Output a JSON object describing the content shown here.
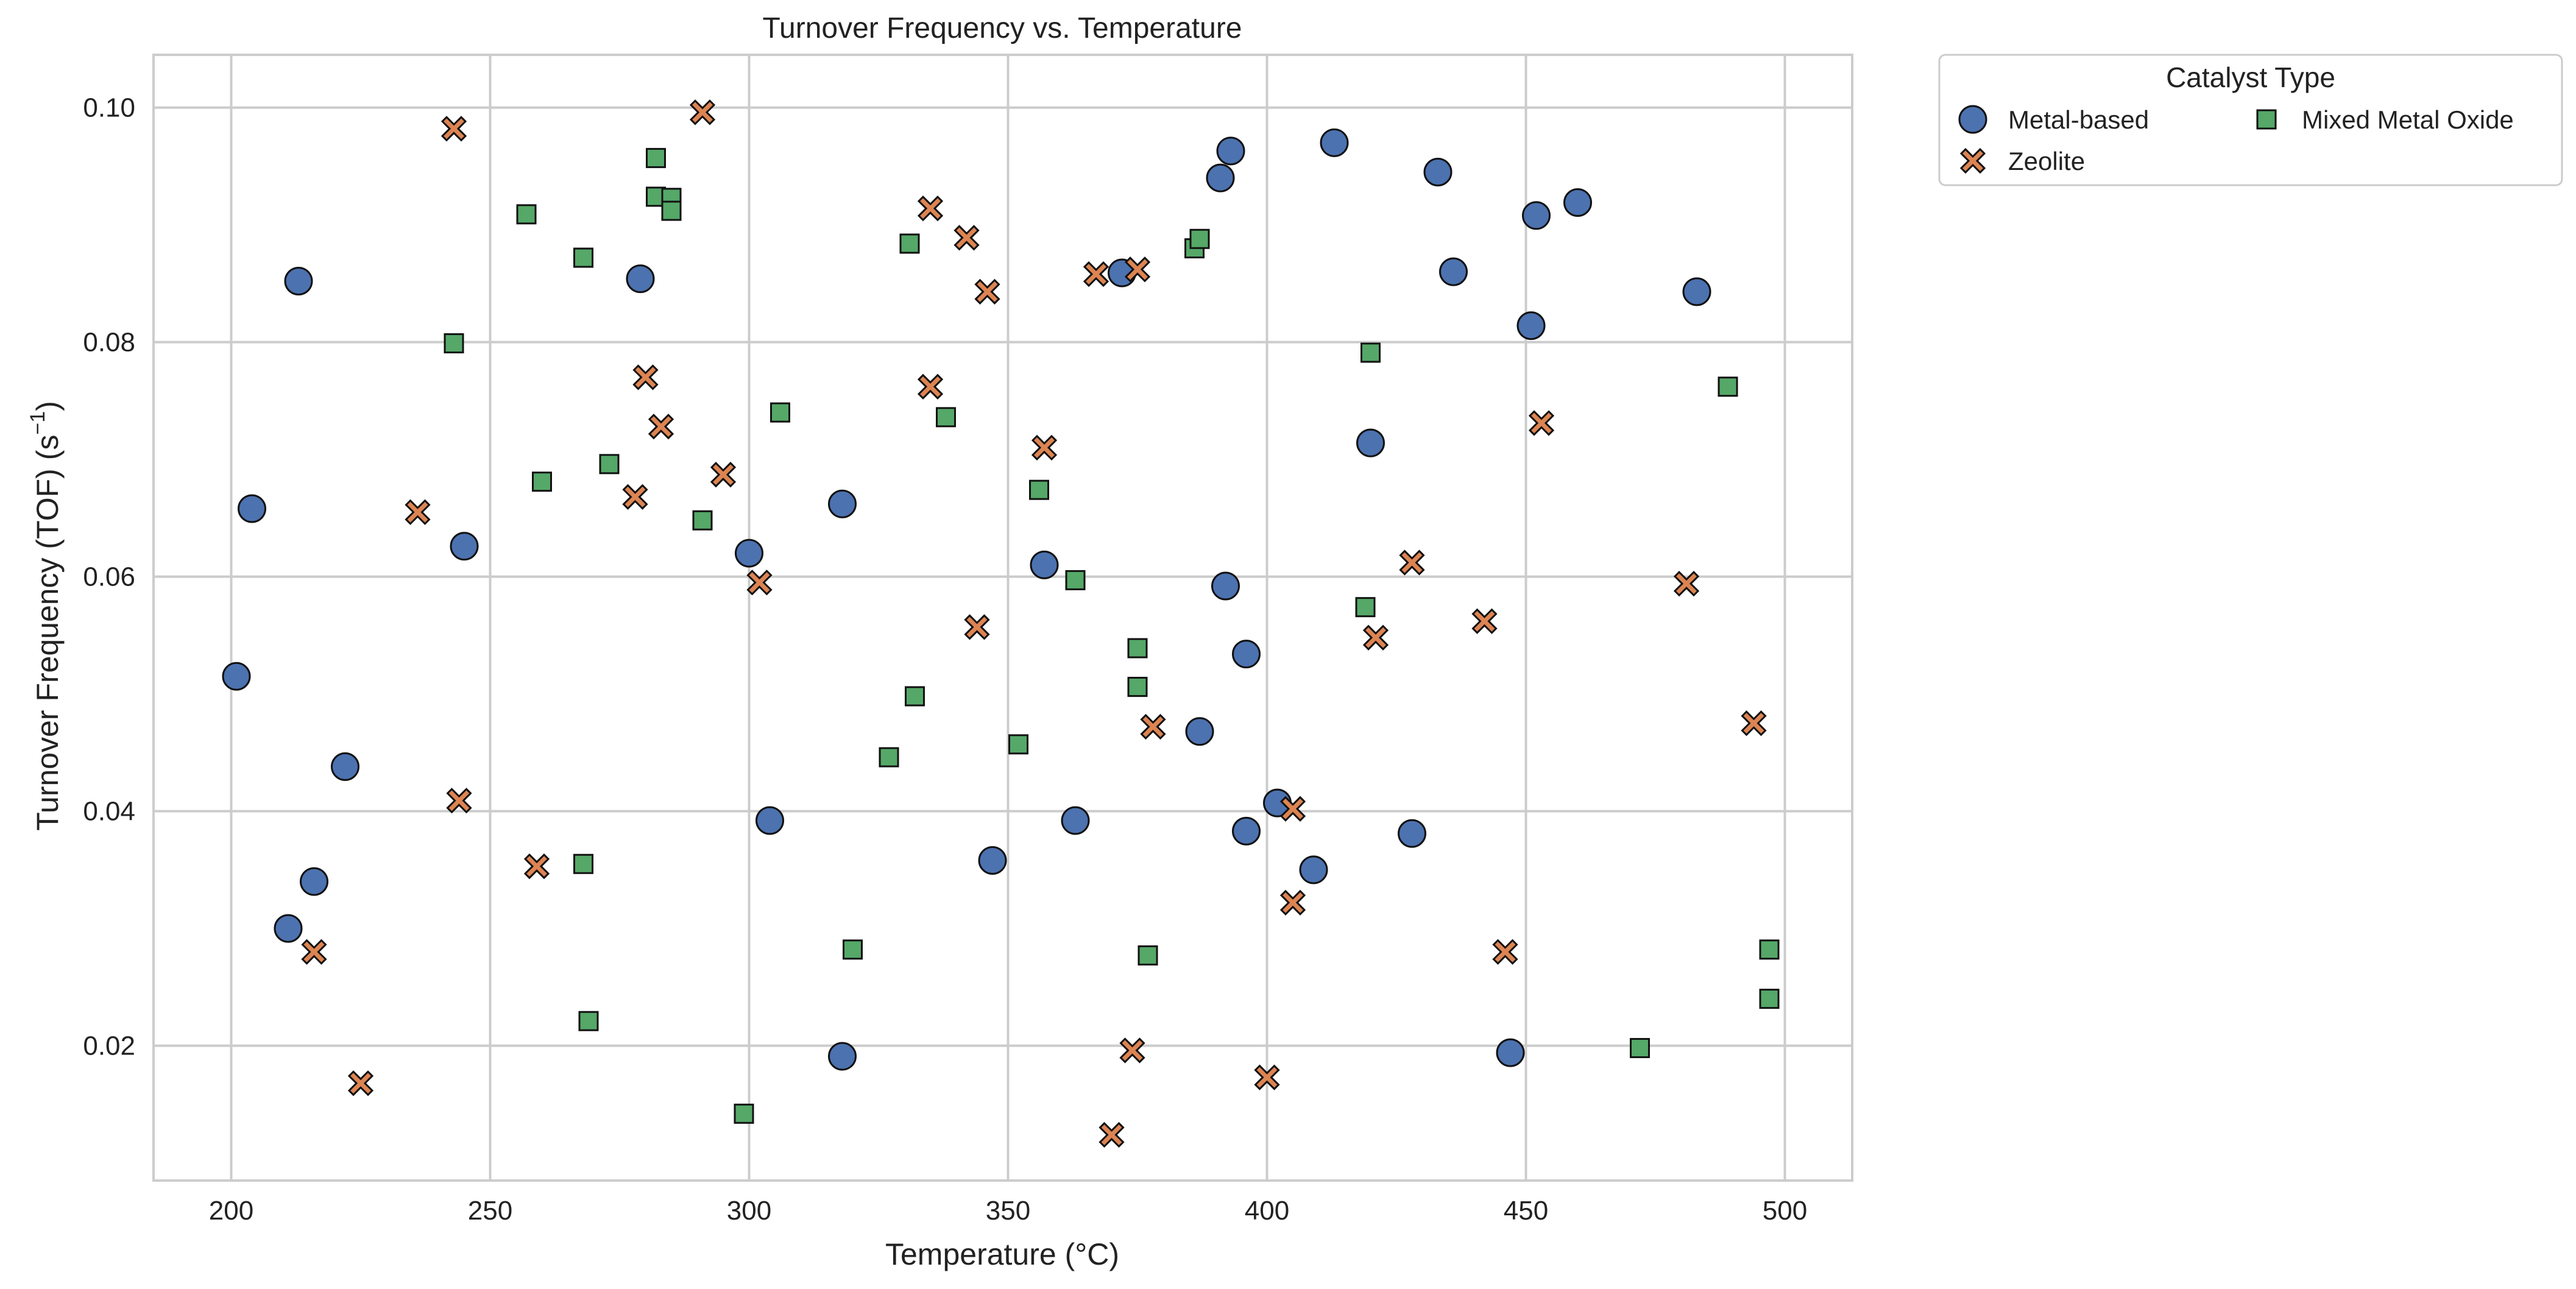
{
  "chart_data": {
    "type": "scatter",
    "title": "Turnover Frequency vs. Temperature",
    "xlabel": "Temperature (°C)",
    "ylabel_main": "Turnover Frequency (TOF) (s",
    "ylabel_sup": "−1",
    "ylabel_end": ")",
    "xlim": [
      185,
      513
    ],
    "ylim": [
      0.0085,
      0.1045
    ],
    "xticks": [
      200,
      250,
      300,
      350,
      400,
      450,
      500
    ],
    "yticks": [
      0.02,
      0.04,
      0.06,
      0.08,
      0.1
    ],
    "xtick_labels": [
      "200",
      "250",
      "300",
      "350",
      "400",
      "450",
      "500"
    ],
    "ytick_labels": [
      "0.02",
      "0.04",
      "0.06",
      "0.08",
      "0.10"
    ],
    "grid": true,
    "legend": {
      "title": "Catalyst Type",
      "placement": "outside-top-right",
      "columns": 2
    },
    "series": [
      {
        "name": "Metal-based",
        "marker": "circle",
        "color": "#4C72B0",
        "points": [
          [
            201,
            0.0515
          ],
          [
            204,
            0.0658
          ],
          [
            211,
            0.03
          ],
          [
            213,
            0.0852
          ],
          [
            216,
            0.034
          ],
          [
            222,
            0.0438
          ],
          [
            245,
            0.0626
          ],
          [
            279,
            0.0854
          ],
          [
            300,
            0.062
          ],
          [
            304,
            0.0392
          ],
          [
            318,
            0.0662
          ],
          [
            318,
            0.0191
          ],
          [
            347,
            0.0358
          ],
          [
            357,
            0.061
          ],
          [
            363,
            0.0392
          ],
          [
            372,
            0.0859
          ],
          [
            387,
            0.0468
          ],
          [
            391,
            0.094
          ],
          [
            392,
            0.0592
          ],
          [
            393,
            0.0963
          ],
          [
            396,
            0.0383
          ],
          [
            396,
            0.0534
          ],
          [
            402,
            0.0407
          ],
          [
            409,
            0.035
          ],
          [
            413,
            0.097
          ],
          [
            420,
            0.0714
          ],
          [
            428,
            0.0381
          ],
          [
            433,
            0.0945
          ],
          [
            436,
            0.086
          ],
          [
            447,
            0.0194
          ],
          [
            451,
            0.0814
          ],
          [
            452,
            0.0908
          ],
          [
            460,
            0.0919
          ],
          [
            483,
            0.0843
          ]
        ]
      },
      {
        "name": "Zeolite",
        "marker": "x",
        "color": "#DD8452",
        "points": [
          [
            216,
            0.028
          ],
          [
            225,
            0.0168
          ],
          [
            236,
            0.0655
          ],
          [
            243,
            0.0982
          ],
          [
            244,
            0.0409
          ],
          [
            259,
            0.0353
          ],
          [
            278,
            0.0668
          ],
          [
            280,
            0.077
          ],
          [
            283,
            0.0728
          ],
          [
            291,
            0.0996
          ],
          [
            295,
            0.0687
          ],
          [
            302,
            0.0595
          ],
          [
            335,
            0.0762
          ],
          [
            335,
            0.0914
          ],
          [
            342,
            0.0889
          ],
          [
            344,
            0.0557
          ],
          [
            346,
            0.0843
          ],
          [
            357,
            0.071
          ],
          [
            367,
            0.0858
          ],
          [
            370,
            0.0124
          ],
          [
            374,
            0.0196
          ],
          [
            375,
            0.0862
          ],
          [
            378,
            0.0472
          ],
          [
            400,
            0.0173
          ],
          [
            405,
            0.0402
          ],
          [
            405,
            0.0322
          ],
          [
            421,
            0.0548
          ],
          [
            428,
            0.0612
          ],
          [
            442,
            0.0562
          ],
          [
            446,
            0.028
          ],
          [
            453,
            0.0731
          ],
          [
            481,
            0.0594
          ],
          [
            494,
            0.0475
          ]
        ]
      },
      {
        "name": "Mixed Metal Oxide",
        "marker": "square",
        "color": "#55A868",
        "points": [
          [
            243,
            0.0799
          ],
          [
            257,
            0.0909
          ],
          [
            260,
            0.0681
          ],
          [
            268,
            0.0872
          ],
          [
            268,
            0.0355
          ],
          [
            269,
            0.0221
          ],
          [
            273,
            0.0696
          ],
          [
            282,
            0.0957
          ],
          [
            282,
            0.0924
          ],
          [
            285,
            0.0923
          ],
          [
            285,
            0.0912
          ],
          [
            291,
            0.0648
          ],
          [
            299,
            0.0142
          ],
          [
            306,
            0.074
          ],
          [
            320,
            0.0282
          ],
          [
            327,
            0.0446
          ],
          [
            331,
            0.0884
          ],
          [
            332,
            0.0498
          ],
          [
            338,
            0.0736
          ],
          [
            352,
            0.0457
          ],
          [
            356,
            0.0674
          ],
          [
            363,
            0.0597
          ],
          [
            375,
            0.0539
          ],
          [
            375,
            0.0506
          ],
          [
            377,
            0.0277
          ],
          [
            386,
            0.088
          ],
          [
            387,
            0.0888
          ],
          [
            419,
            0.0574
          ],
          [
            420,
            0.0791
          ],
          [
            472,
            0.0198
          ],
          [
            489,
            0.0762
          ],
          [
            497,
            0.0282
          ],
          [
            497,
            0.024
          ]
        ]
      }
    ]
  }
}
